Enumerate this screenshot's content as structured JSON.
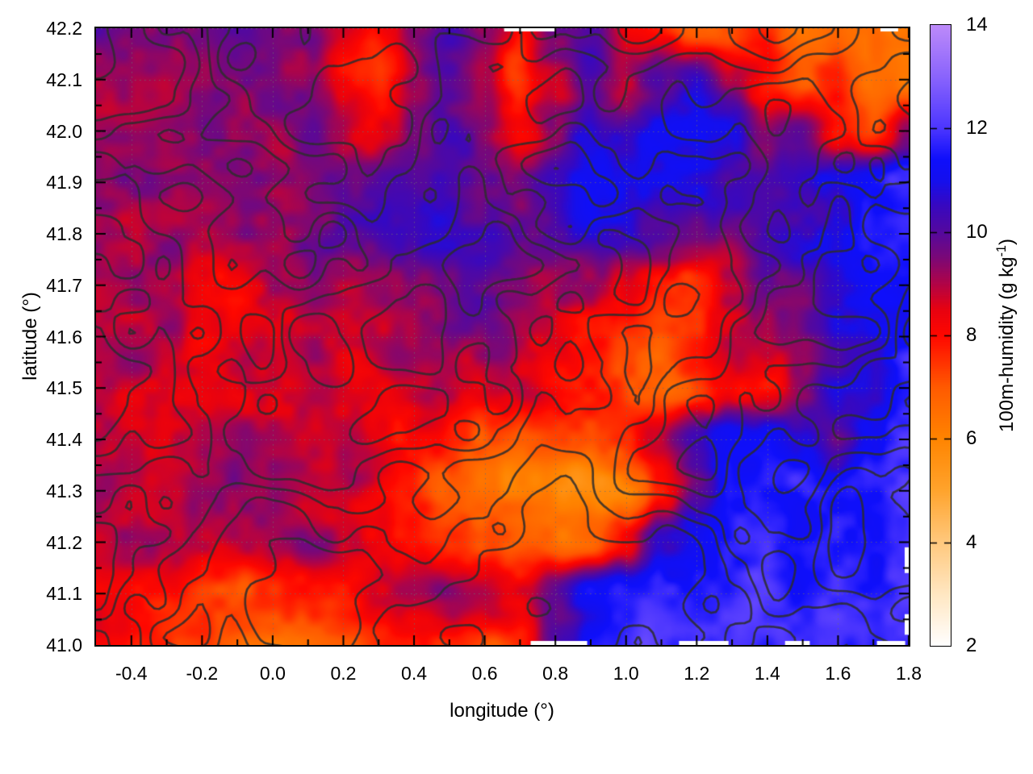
{
  "page": {
    "background": "#ffffff"
  },
  "chart_data": {
    "type": "heatmap",
    "title": "",
    "xlabel": "longitude (°)",
    "ylabel": "latitude (°)",
    "xlim": [
      -0.5,
      1.8
    ],
    "ylim": [
      41.0,
      42.2
    ],
    "x_tick_labels": [
      "-0.4",
      "-0.2",
      "0.0",
      "0.2",
      "0.4",
      "0.6",
      "0.8",
      "1.0",
      "1.2",
      "1.4",
      "1.6",
      "1.8"
    ],
    "x_tick_values": [
      -0.4,
      -0.2,
      0.0,
      0.2,
      0.4,
      0.6,
      0.8,
      1.0,
      1.2,
      1.4,
      1.6,
      1.8
    ],
    "x_minor_step": 0.1,
    "y_tick_labels": [
      "41.0",
      "41.1",
      "41.2",
      "41.3",
      "41.4",
      "41.5",
      "41.6",
      "41.7",
      "41.8",
      "41.9",
      "42.0",
      "42.1",
      "42.2"
    ],
    "y_tick_values": [
      41.0,
      41.1,
      41.2,
      41.3,
      41.4,
      41.5,
      41.6,
      41.7,
      41.8,
      41.9,
      42.0,
      42.1,
      42.2
    ],
    "y_minor_step": 0.05,
    "grid_lines": true,
    "grid_line_color": "rgba(110,110,110,0.75)",
    "colorbar": {
      "label_main": "100m-humidity (g kg",
      "label_sup": "-1",
      "label_end": ")",
      "tick_labels": [
        "2",
        "4",
        "6",
        "8",
        "10",
        "12",
        "14"
      ],
      "tick_values": [
        2,
        4,
        6,
        8,
        10,
        12,
        14
      ],
      "range": [
        2,
        14
      ],
      "palette_stops": [
        [
          2,
          "#ffffff"
        ],
        [
          3,
          "#ffe7c2"
        ],
        [
          4,
          "#ffc97e"
        ],
        [
          5,
          "#ffa42d"
        ],
        [
          6,
          "#ff8501"
        ],
        [
          7,
          "#ff5a00"
        ],
        [
          8,
          "#ff0800"
        ],
        [
          8.5,
          "#e80211"
        ],
        [
          9,
          "#b10448"
        ],
        [
          9.5,
          "#7c0877"
        ],
        [
          10,
          "#55099f"
        ],
        [
          10.5,
          "#3908c0"
        ],
        [
          11,
          "#1510ee"
        ],
        [
          11.4,
          "#0f0ffb"
        ],
        [
          12,
          "#4c36ff"
        ],
        [
          13,
          "#8a64fd"
        ],
        [
          14,
          "#bd8bfa"
        ]
      ]
    },
    "humidity_grid": {
      "units": "g kg-1",
      "lon_start": -0.5,
      "lon_step": 0.1,
      "lat_start": 42.2,
      "lat_step": -0.1,
      "values": [
        [
          9.6,
          9.6,
          9.5,
          9.4,
          9.5,
          9.6,
          9.4,
          8.6,
          7.8,
          9.2,
          9.9,
          9.0,
          8.0,
          9.8,
          10.2,
          8.3,
          8.0,
          7.2,
          7.0,
          7.4,
          6.4,
          6.2,
          6.8,
          6.0
        ],
        [
          9.4,
          9.5,
          9.4,
          9.3,
          9.4,
          9.5,
          9.3,
          8.2,
          7.6,
          9.0,
          9.8,
          9.2,
          7.2,
          8.6,
          10.4,
          9.0,
          9.8,
          10.6,
          9.2,
          8.0,
          7.0,
          7.6,
          6.6,
          6.4
        ],
        [
          9.3,
          9.3,
          9.4,
          9.3,
          9.3,
          9.4,
          9.5,
          9.0,
          8.4,
          9.4,
          9.9,
          9.4,
          8.2,
          9.4,
          10.6,
          10.2,
          10.9,
          11.3,
          10.6,
          9.4,
          9.8,
          8.2,
          7.4,
          9.6
        ],
        [
          9.2,
          9.2,
          9.3,
          9.2,
          9.2,
          9.3,
          9.5,
          9.7,
          9.8,
          9.9,
          10.3,
          10.0,
          9.4,
          10.2,
          10.8,
          11.0,
          11.2,
          10.8,
          10.2,
          10.0,
          10.4,
          10.9,
          11.3,
          11.7
        ],
        [
          9.1,
          9.0,
          9.1,
          9.2,
          9.1,
          9.2,
          9.4,
          9.7,
          10.0,
          10.4,
          10.6,
          10.3,
          10.0,
          10.5,
          10.7,
          10.4,
          10.1,
          9.8,
          9.6,
          10.0,
          10.5,
          11.0,
          11.5,
          11.8
        ],
        [
          9.0,
          9.0,
          9.1,
          8.6,
          8.1,
          9.0,
          9.2,
          9.0,
          9.2,
          9.5,
          9.8,
          10.0,
          9.7,
          9.4,
          9.0,
          8.3,
          7.8,
          7.4,
          8.6,
          9.4,
          9.9,
          10.6,
          11.2,
          11.6
        ],
        [
          9.0,
          8.9,
          8.8,
          8.3,
          8.5,
          8.9,
          8.9,
          8.7,
          9.0,
          9.2,
          9.4,
          9.4,
          9.0,
          8.6,
          8.0,
          7.3,
          6.9,
          7.6,
          8.6,
          9.0,
          9.6,
          10.3,
          10.9,
          11.4
        ],
        [
          8.8,
          8.8,
          8.8,
          8.7,
          8.8,
          8.9,
          8.7,
          8.5,
          8.4,
          8.7,
          8.9,
          8.8,
          8.5,
          8.0,
          7.7,
          7.0,
          6.8,
          7.4,
          8.2,
          7.8,
          9.4,
          10.6,
          11.2,
          11.7
        ],
        [
          8.8,
          8.7,
          8.8,
          8.9,
          9.0,
          8.9,
          8.9,
          8.8,
          8.6,
          8.2,
          7.8,
          7.0,
          6.8,
          7.0,
          7.2,
          7.6,
          8.8,
          10.2,
          11.0,
          11.4,
          10.6,
          9.5,
          10.8,
          11.7
        ],
        [
          8.9,
          8.9,
          9.0,
          9.1,
          9.2,
          9.0,
          8.9,
          8.8,
          8.4,
          7.8,
          7.0,
          6.4,
          6.2,
          5.8,
          5.6,
          6.0,
          7.4,
          9.6,
          11.2,
          11.8,
          11.6,
          11.2,
          11.6,
          11.8
        ],
        [
          9.0,
          9.1,
          9.2,
          9.0,
          8.8,
          9.1,
          9.2,
          9.0,
          8.6,
          8.2,
          7.6,
          7.0,
          6.6,
          6.4,
          6.8,
          8.2,
          10.6,
          11.5,
          11.8,
          11.8,
          11.7,
          11.8,
          11.8,
          11.8
        ],
        [
          8.6,
          8.4,
          7.8,
          7.2,
          7.3,
          7.9,
          8.2,
          7.8,
          8.4,
          8.9,
          9.4,
          9.0,
          8.4,
          9.8,
          11.2,
          11.6,
          11.8,
          12.0,
          11.9,
          11.8,
          11.8,
          11.9,
          11.9,
          12.0
        ],
        [
          8.2,
          8.0,
          7.8,
          7.4,
          6.9,
          6.7,
          6.8,
          7.0,
          7.4,
          7.8,
          7.6,
          7.0,
          7.4,
          10.0,
          11.5,
          11.9,
          12.0,
          12.0,
          11.9,
          11.9,
          11.9,
          12.0,
          11.9,
          12.0
        ]
      ]
    },
    "contours": {
      "color": "rgba(45,45,45,0.85)",
      "line_width": 2.7
    },
    "data_gaps": {
      "bottom_lon": [
        [
          0.73,
          0.89
        ],
        [
          1.15,
          1.29
        ],
        [
          1.45,
          1.52
        ],
        [
          1.71,
          1.79
        ]
      ],
      "top_lon": [
        [
          0.655,
          0.8
        ],
        [
          1.72,
          1.77
        ]
      ],
      "right_lat": [
        [
          41.14,
          41.19
        ],
        [
          41.02,
          41.06
        ]
      ]
    }
  }
}
